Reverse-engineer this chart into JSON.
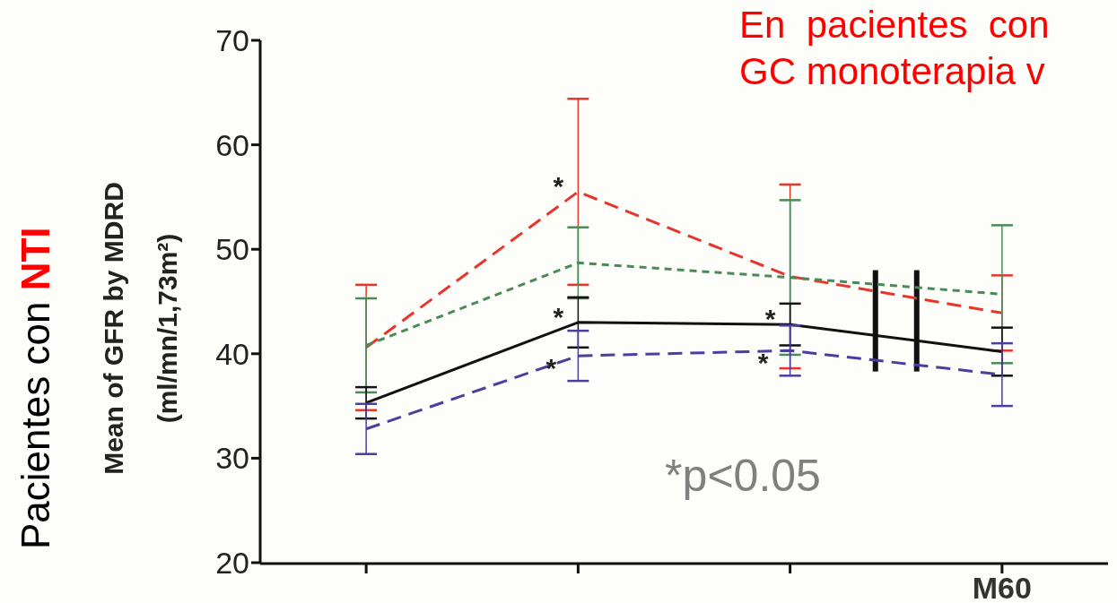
{
  "chart_data": {
    "type": "line",
    "title": "Pacientes con NTI",
    "ylabel": "Mean of GFR by  MDRD\n(ml/mn/1,73m²)",
    "categories": [
      null,
      null,
      null,
      "M60"
    ],
    "ylim": [
      20,
      70
    ],
    "yticks": [
      20,
      30,
      40,
      50,
      60,
      70
    ],
    "grid": false,
    "marker": "none",
    "series": [
      {
        "color": "#e8352b",
        "line_style": "dashed",
        "values": [
          40.6,
          55.5,
          47.4,
          43.9
        ],
        "errors": [
          6,
          8.9,
          8.8,
          3.6
        ],
        "value_labels": [
          null,
          "*",
          null,
          null
        ]
      },
      {
        "color": "#4a8a5a",
        "line_style": "dotted",
        "values": [
          40.8,
          48.7,
          47.3,
          45.7
        ],
        "errors": [
          4.5,
          3.4,
          7.4,
          6.6
        ],
        "value_labels": [
          null,
          null,
          null,
          null
        ]
      },
      {
        "color": "#111111",
        "line_style": "solid",
        "values": [
          35.3,
          43,
          42.8,
          40.2
        ],
        "errors": [
          1.5,
          2.4,
          2,
          2.3
        ],
        "value_labels": [
          null,
          "*",
          "*",
          null
        ]
      },
      {
        "color": "#4a3fa0",
        "line_style": "dashed",
        "values": [
          32.8,
          39.8,
          40.3,
          38
        ],
        "errors": [
          2.4,
          2.4,
          2.4,
          3
        ],
        "value_labels": [
          null,
          "*",
          "*",
          null
        ]
      }
    ],
    "annotations": [
      "*p<0.05",
      "En  pacientes  con",
      "GC monoterapia v"
    ]
  }
}
